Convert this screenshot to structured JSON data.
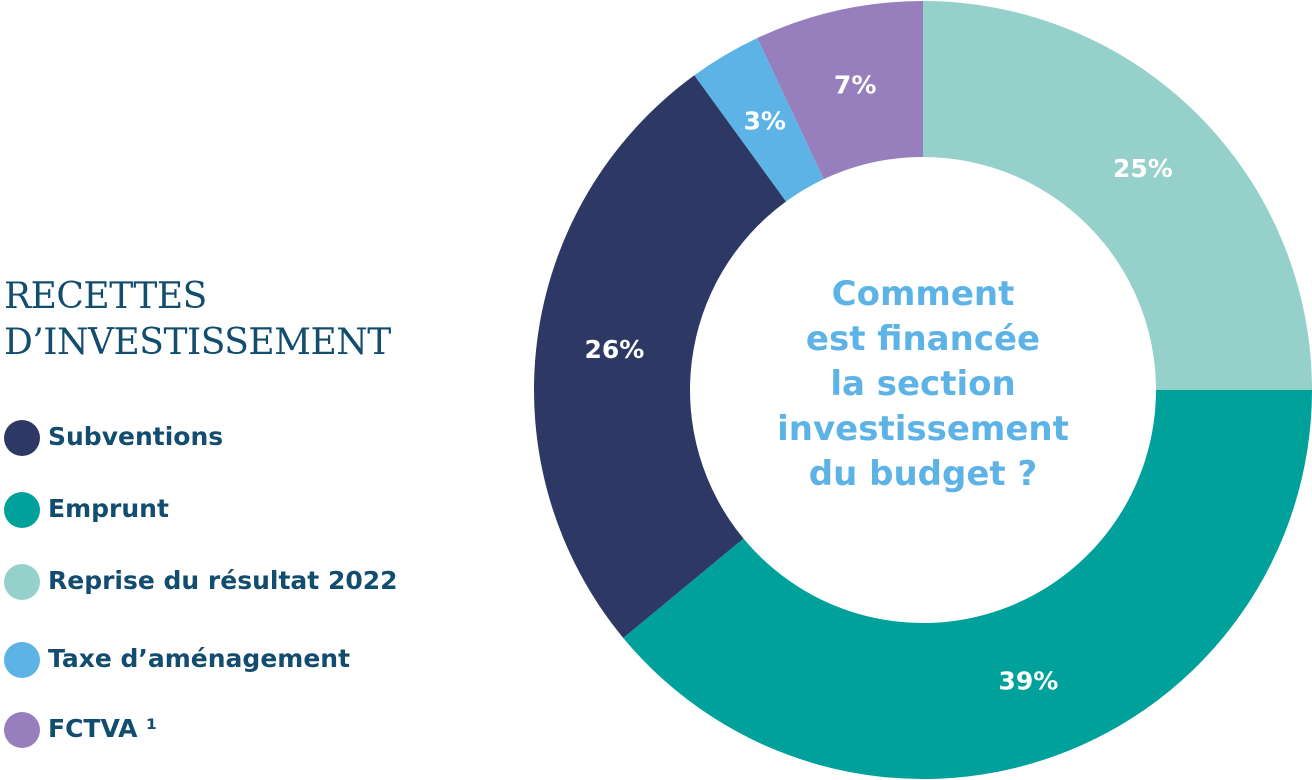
{
  "chart_data": {
    "type": "donut",
    "title": [
      "RECETTES",
      "D’INVESTISSEMENT"
    ],
    "center_text": [
      "Comment",
      "est financée",
      "la section",
      "investissement",
      "du budget ?"
    ],
    "categories": [
      "Reprise du résultat 2022",
      "Emprunt",
      "Subventions",
      "Taxe d’aménagement",
      "FCTVA ¹"
    ],
    "values": [
      25,
      39,
      26,
      3,
      7
    ],
    "value_labels": [
      "25%",
      "39%",
      "26%",
      "3%",
      "7%"
    ],
    "colors": [
      "#96d0cb",
      "#00a19a",
      "#2d3864",
      "#5db3e6",
      "#967fbc"
    ]
  }
}
